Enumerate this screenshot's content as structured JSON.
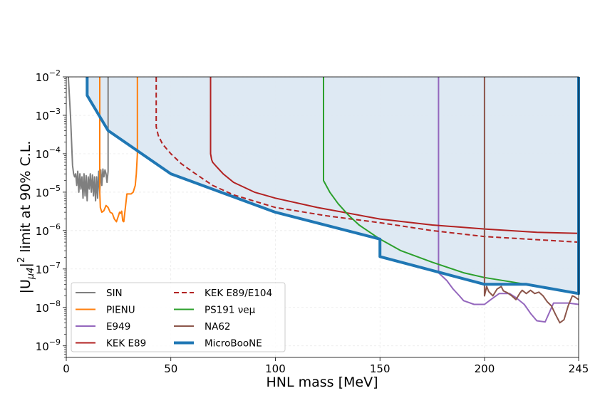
{
  "chart_data": {
    "type": "line",
    "xlabel": "HNL mass [MeV]",
    "ylabel": {
      "prefix": "|U",
      "sub": "μ4",
      "sup": "2",
      "suffix": " limit at 90% C.L."
    },
    "xlim": [
      0,
      245
    ],
    "ylim": [
      5e-10,
      0.01
    ],
    "yscale": "log",
    "grid": true,
    "x_ticks": [
      "0",
      "50",
      "100",
      "150",
      "200",
      "245"
    ],
    "x_tick_values": [
      0,
      50,
      100,
      150,
      200,
      245
    ],
    "y_ticks": [
      {
        "base": "10",
        "exp": "−2"
      },
      {
        "base": "10",
        "exp": "−3"
      },
      {
        "base": "10",
        "exp": "−4"
      },
      {
        "base": "10",
        "exp": "−5"
      },
      {
        "base": "10",
        "exp": "−6"
      },
      {
        "base": "10",
        "exp": "−7"
      },
      {
        "base": "10",
        "exp": "−8"
      },
      {
        "base": "10",
        "exp": "−9"
      }
    ],
    "y_tick_values": [
      0.01,
      0.001,
      0.0001,
      1e-05,
      1e-06,
      1e-07,
      1e-08,
      1e-09
    ],
    "legend_position": "bottom-left",
    "series": [
      {
        "name": "SIN",
        "color": "#7f7f7f",
        "style": "solid",
        "x": [
          1,
          2,
          3,
          3.5,
          4,
          4.5,
          5,
          5.5,
          6,
          6.5,
          7,
          7.5,
          8,
          8.5,
          9,
          9.5,
          10,
          10.5,
          11,
          11.5,
          12,
          12.5,
          13,
          13.5,
          14,
          14.5,
          15,
          15.5,
          16,
          16.5,
          17,
          17.5,
          18,
          18.5,
          19,
          19.5,
          20,
          20
        ],
        "y": [
          0.01,
          0.001,
          5e-05,
          3e-05,
          2.5e-05,
          3e-05,
          1.5e-05,
          3.5e-05,
          1e-05,
          3e-05,
          1.2e-05,
          2.5e-05,
          7e-06,
          3e-05,
          8e-06,
          2.7e-05,
          6e-06,
          2.5e-05,
          1.2e-05,
          3e-05,
          1e-05,
          2.8e-05,
          8e-06,
          2.5e-05,
          6e-06,
          2.5e-05,
          7e-06,
          3.5e-05,
          1e-05,
          3.8e-05,
          1.5e-05,
          4e-05,
          2.5e-05,
          3.8e-05,
          3e-05,
          1.8e-05,
          3.5e-05,
          0.01
        ]
      },
      {
        "name": "PIENU",
        "color": "#ff7f0e",
        "style": "solid",
        "x": [
          16,
          16,
          16.3,
          17,
          18,
          19,
          20,
          21,
          22,
          23,
          24,
          25,
          25.5,
          26,
          26.5,
          27,
          27.5,
          28,
          29,
          31,
          32,
          33,
          33.5,
          34,
          34
        ],
        "y": [
          0.01,
          1e-05,
          4e-06,
          3e-06,
          3.3e-06,
          4.5e-06,
          4e-06,
          3e-06,
          2.8e-06,
          2e-06,
          1.7e-06,
          2.5e-06,
          3e-06,
          2.8e-06,
          3.2e-06,
          1.8e-06,
          1.7e-06,
          3e-06,
          9e-06,
          9e-06,
          1e-05,
          1.5e-05,
          3e-05,
          0.0001,
          0.01
        ]
      },
      {
        "name": "E949",
        "color": "#9467bd",
        "style": "solid",
        "x": [
          178,
          178,
          182,
          185,
          188,
          190,
          195,
          200,
          203,
          207,
          212,
          215,
          219,
          222,
          225,
          229,
          233,
          240,
          245
        ],
        "y": [
          0.01,
          8e-08,
          5e-08,
          3e-08,
          2e-08,
          1.5e-08,
          1.2e-08,
          1.2e-08,
          1.6e-08,
          2.3e-08,
          2.3e-08,
          1.8e-08,
          1.2e-08,
          7e-09,
          4.5e-09,
          4.2e-09,
          1.3e-08,
          1.3e-08,
          1.2e-08
        ]
      },
      {
        "name": "KEK E89",
        "color": "#b22222",
        "style": "solid",
        "x": [
          69,
          69,
          69.5,
          70,
          72,
          75,
          80,
          90,
          100,
          120,
          150,
          175,
          200,
          225,
          245
        ],
        "y": [
          0.01,
          0.0001,
          7e-05,
          6e-05,
          4.5e-05,
          3e-05,
          1.8e-05,
          1e-05,
          7e-06,
          4e-06,
          2e-06,
          1.4e-06,
          1.1e-06,
          9e-07,
          8.5e-07
        ]
      },
      {
        "name": "KEK E89/E104",
        "color": "#b22222",
        "style": "dashed",
        "x": [
          43,
          43,
          44,
          46,
          50,
          55,
          60,
          70,
          80,
          100,
          125,
          150,
          175,
          200,
          225,
          245
        ],
        "y": [
          0.01,
          0.0005,
          0.0003,
          0.00018,
          0.0001,
          5.5e-05,
          3.5e-05,
          1.5e-05,
          8.5e-06,
          4e-06,
          2.4e-06,
          1.6e-06,
          1e-06,
          7e-07,
          5.8e-07,
          5e-07
        ]
      },
      {
        "name": "PS191 νeμ",
        "color": "#2ca02c",
        "style": "solid",
        "x": [
          123,
          123,
          126,
          130,
          135,
          140,
          150,
          160,
          175,
          190,
          200,
          220,
          245
        ],
        "y": [
          0.01,
          2e-05,
          1e-05,
          5e-06,
          2.5e-06,
          1.4e-06,
          6e-07,
          3e-07,
          1.5e-07,
          8e-08,
          6e-08,
          4e-08,
          2.3e-08
        ]
      },
      {
        "name": "NA62",
        "color": "#8c564b",
        "style": "solid",
        "x": [
          200,
          200,
          201,
          202,
          204,
          206,
          208,
          209,
          211,
          213,
          215,
          217,
          218,
          220,
          222,
          224,
          226,
          228,
          230,
          232,
          234,
          236,
          238,
          240,
          242,
          243,
          245
        ],
        "y": [
          0.01,
          2e-08,
          3.5e-08,
          2.6e-08,
          2e-08,
          3e-08,
          3.5e-08,
          2.7e-08,
          2.4e-08,
          2e-08,
          1.6e-08,
          2.4e-08,
          2.8e-08,
          2.3e-08,
          2.8e-08,
          2.3e-08,
          2.5e-08,
          2e-08,
          1.4e-08,
          1.1e-08,
          6.5e-09,
          4e-09,
          4.8e-09,
          1.1e-08,
          2e-08,
          1.9e-08,
          1.6e-08
        ]
      },
      {
        "name": "MicroBooNE",
        "color": "#1f77b4",
        "fill": "#dce8f2",
        "style": "thick",
        "x": [
          10,
          10,
          20,
          50,
          100,
          150,
          150,
          200,
          220,
          245,
          245
        ],
        "y": [
          0.01,
          0.0033,
          0.0004,
          3e-05,
          3e-06,
          6e-07,
          2.1e-07,
          4e-08,
          4e-08,
          2.3e-08,
          0.01
        ]
      }
    ]
  }
}
